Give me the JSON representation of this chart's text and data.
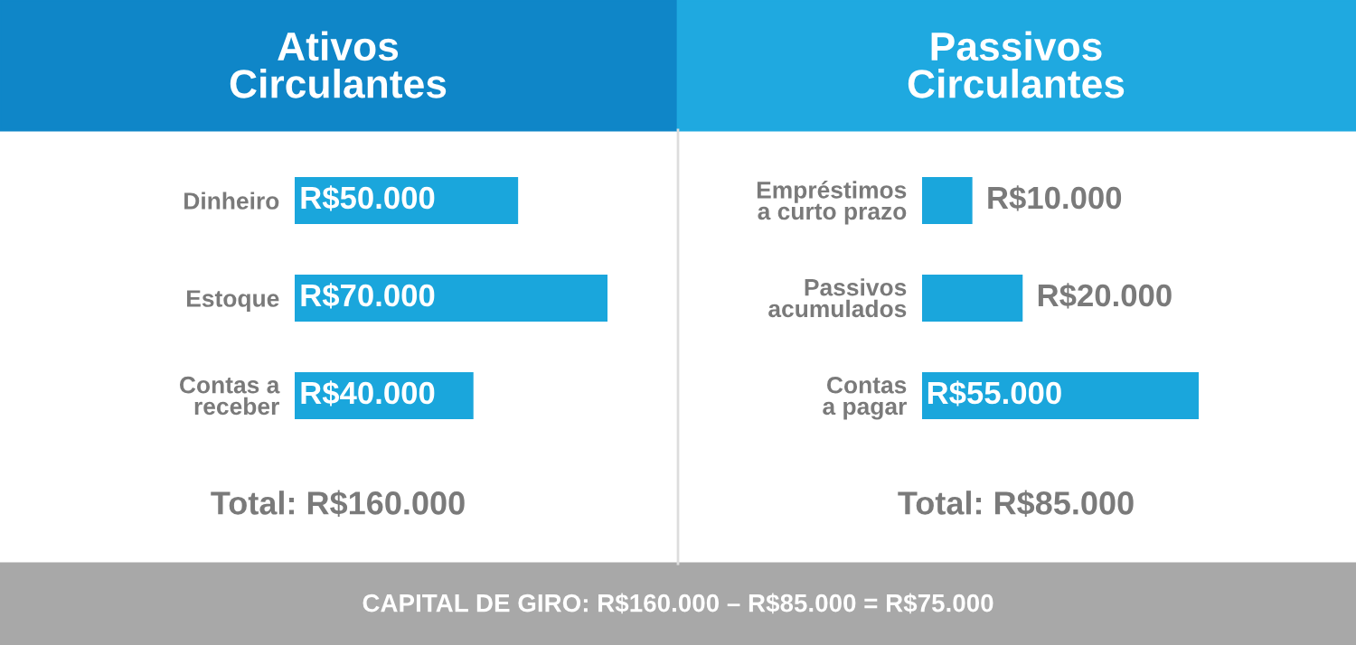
{
  "chart_data": [
    {
      "type": "bar",
      "orientation": "horizontal",
      "title": "Ativos\nCirculantes",
      "categories": [
        "Dinheiro",
        "Estoque",
        "Contas a\nreceber"
      ],
      "values": [
        50000,
        70000,
        40000
      ],
      "value_labels": [
        "R$50.000",
        "R$70.000",
        "R$40.000"
      ],
      "color": "#1aa6dc",
      "tick_labels": "y",
      "grid": false,
      "legend": false,
      "annotations": [
        "Total: R$160.000"
      ]
    },
    {
      "type": "bar",
      "orientation": "horizontal",
      "title": "Passivos\nCirculantes",
      "categories": [
        "Empréstimos\na curto prazo",
        "Passivos\nacumulados",
        "Contas\na pagar"
      ],
      "values": [
        10000,
        20000,
        55000
      ],
      "value_labels": [
        "R$10.000",
        "R$20.000",
        "R$55.000"
      ],
      "color": "#1aa6dc",
      "tick_labels": "y",
      "grid": false,
      "legend": false,
      "annotations": [
        "Total: R$85.000",
        "CAPITAL DE GIRO: R$160.000 – R$85.000 = R$75.000"
      ]
    }
  ]
}
